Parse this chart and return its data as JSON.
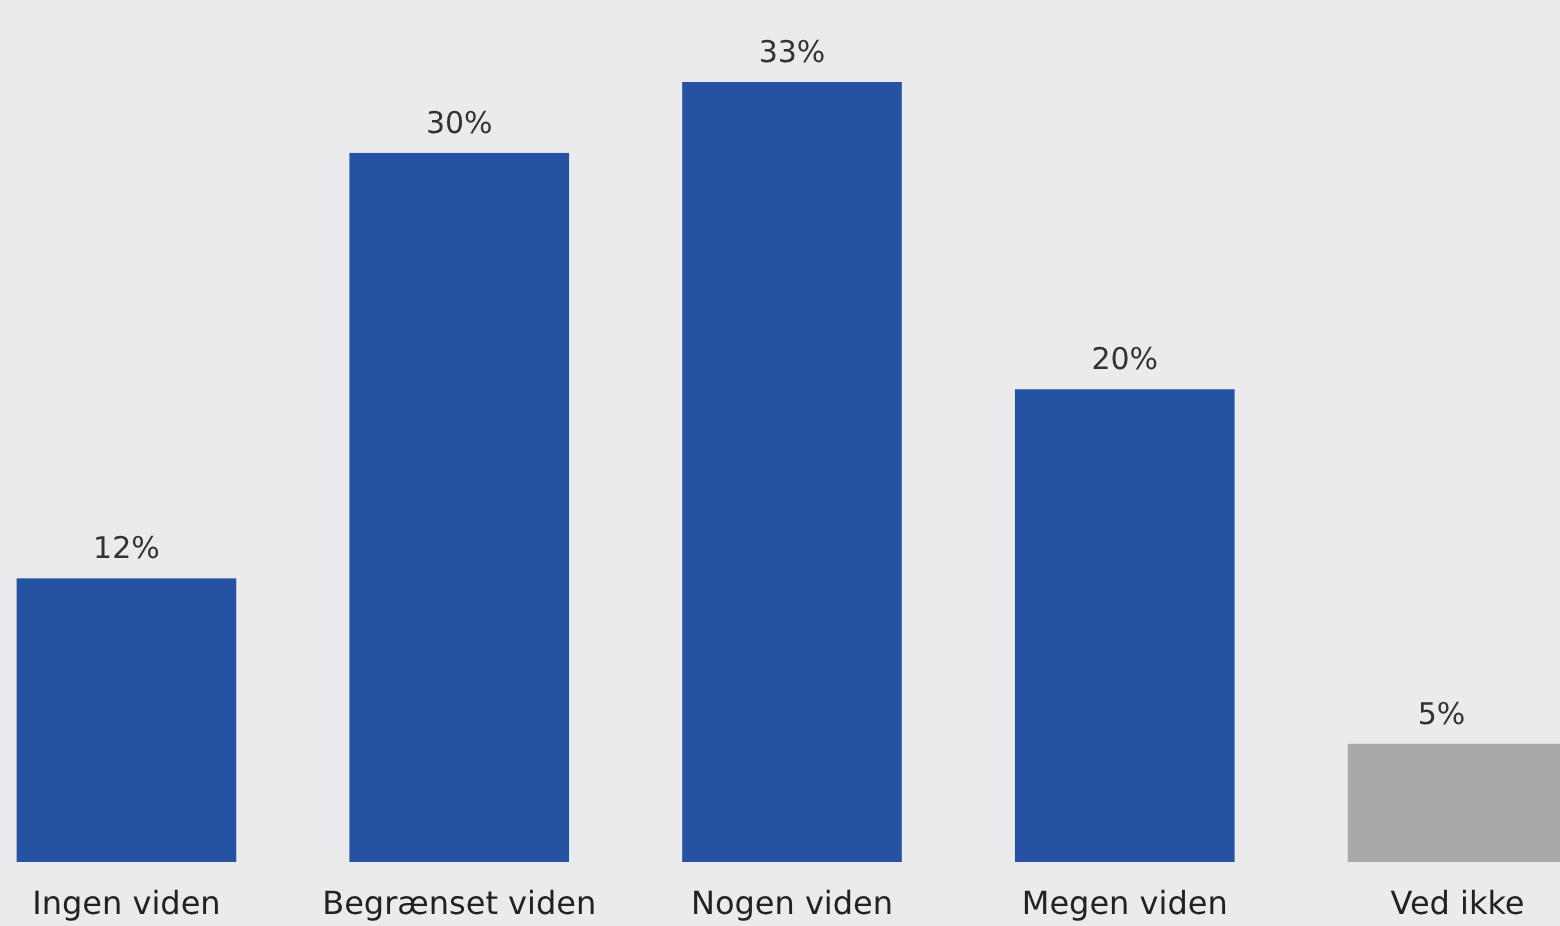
{
  "chart_data": {
    "type": "bar",
    "categories": [
      "Ingen viden",
      "Begrænset viden",
      "Nogen viden",
      "Megen viden",
      "Ved ikke"
    ],
    "values": [
      12,
      30,
      33,
      20,
      5
    ],
    "value_labels": [
      "12%",
      "30%",
      "33%",
      "20%",
      "5%"
    ],
    "colors": [
      "#2552a3",
      "#2552a3",
      "#2552a3",
      "#2552a3",
      "#a9a9a9"
    ]
  }
}
